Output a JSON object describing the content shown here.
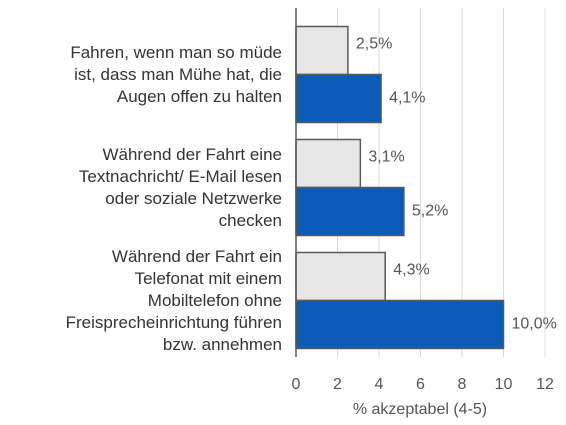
{
  "chart_data": {
    "type": "barh",
    "categories": [
      "Fahren, wenn man so müde\nist, dass man Mühe hat, die\nAugen offen zu halten",
      "Während der Fahrt eine\nTextnachricht/ E-Mail lesen\noder soziale Netzwerke\nchecken",
      "Während der Fahrt ein\nTelefonat mit einem\nMobiltelefon ohne\nFreisprecheinrichtung führen\nbzw. annehmen"
    ],
    "series": [
      {
        "color": "#e6e6e6",
        "values": [
          2.5,
          3.1,
          4.3
        ],
        "value_labels": [
          "2,5%",
          "3,1%",
          "4,3%"
        ]
      },
      {
        "color": "#0a5cb8",
        "values": [
          4.1,
          5.2,
          10.0
        ],
        "value_labels": [
          "4,1%",
          "5,2%",
          "10,0%"
        ]
      }
    ],
    "xlabel": "% akzeptabel (4-5)",
    "xlim": [
      0,
      12
    ],
    "xticks": [
      0,
      2,
      4,
      6,
      8,
      10,
      12
    ],
    "grid": true
  }
}
